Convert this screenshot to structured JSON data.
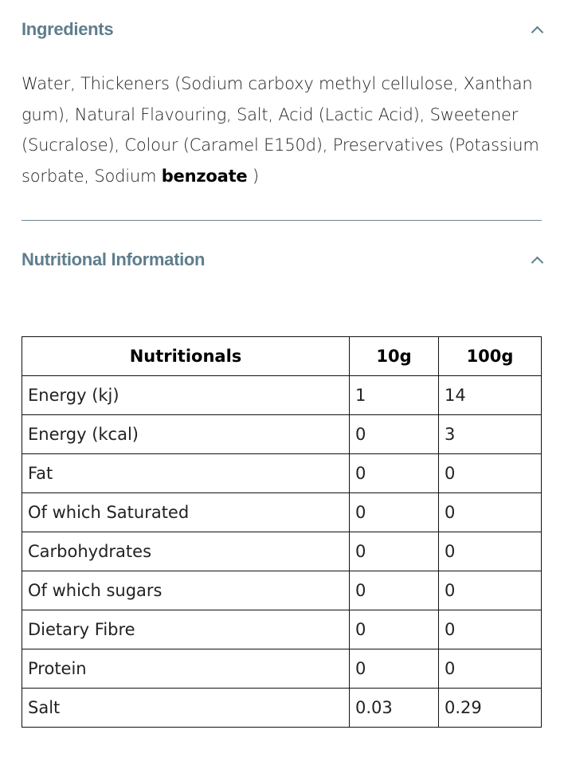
{
  "ingredients": {
    "title": "Ingredients",
    "text": "Water, Thickeners (Sodium carboxy methyl cellulose, Xanthan gum), Natural Flavouring, Salt, Acid (Lactic Acid), Sweetener (Sucralose), Colour (Caramel E150d), Preservatives (Potassium sorbate, Sodium ",
    "bold_text": "benzoate",
    "text_end": " )",
    "expanded": true
  },
  "nutrition": {
    "title": "Nutritional Information",
    "expanded": true,
    "headers": [
      "Nutritionals",
      "10g",
      "100g"
    ],
    "rows": [
      [
        "Energy (kj)",
        "1",
        "14"
      ],
      [
        "Energy (kcal)",
        "0",
        "3"
      ],
      [
        "Fat",
        "0",
        "0"
      ],
      [
        "Of which Saturated",
        "0",
        "0"
      ],
      [
        "Carbohydrates",
        "0",
        "0"
      ],
      [
        "Of which sugars",
        "0",
        "0"
      ],
      [
        "Dietary Fibre",
        "0",
        "0"
      ],
      [
        "Protein",
        "0",
        "0"
      ],
      [
        "Salt",
        "0.03",
        "0.29"
      ]
    ]
  },
  "colors": {
    "heading": "#5f7d8c",
    "divider": "#6e8694"
  }
}
